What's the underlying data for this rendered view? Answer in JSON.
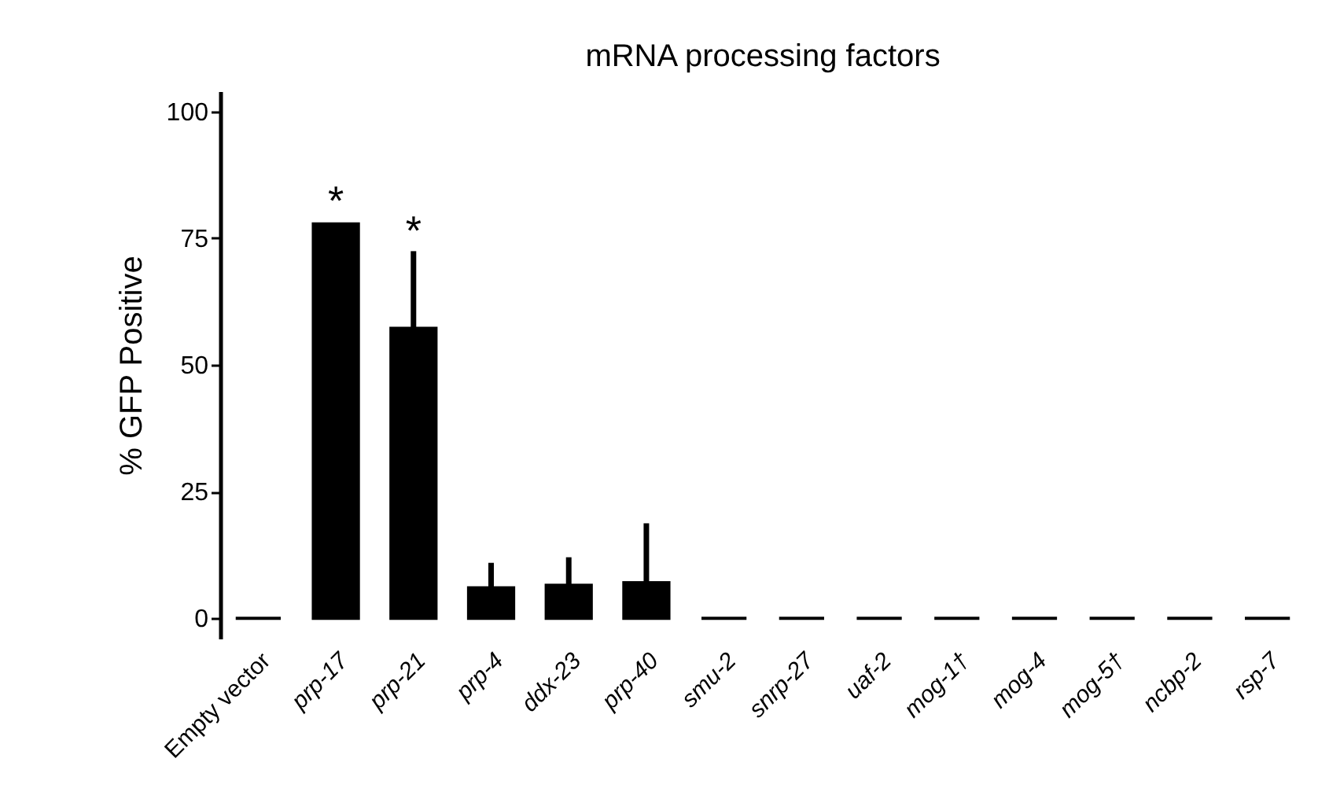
{
  "chart_data": {
    "type": "bar",
    "title": "mRNA processing factors",
    "ylabel": "% GFP Positive",
    "categories": [
      "Empty vector",
      "prp-17",
      "prp-21",
      "prp-4",
      "ddx-23",
      "prp-40",
      "smu-2",
      "snrp-27",
      "uaf-2",
      "mog-1†",
      "mog-4",
      "mog-5†",
      "ncbp-2",
      "rsp-7"
    ],
    "values": [
      0,
      77.8,
      57.2,
      6.0,
      6.5,
      7.0,
      0,
      0,
      0,
      0,
      0,
      0,
      0,
      0
    ],
    "errors": [
      null,
      null,
      [
        57.2,
        71.9
      ],
      [
        6.0,
        10.4
      ],
      [
        6.5,
        11.5
      ],
      [
        7.0,
        18.2
      ],
      null,
      null,
      null,
      null,
      null,
      null,
      null,
      null
    ],
    "color": "#000000",
    "value_labels": [
      null,
      "*",
      "*",
      null,
      null,
      null,
      null,
      null,
      null,
      null,
      null,
      null,
      null,
      null
    ],
    "ylim": [
      -4,
      104
    ],
    "yticks": [
      0,
      25,
      50,
      75,
      100
    ],
    "grid": false
  }
}
